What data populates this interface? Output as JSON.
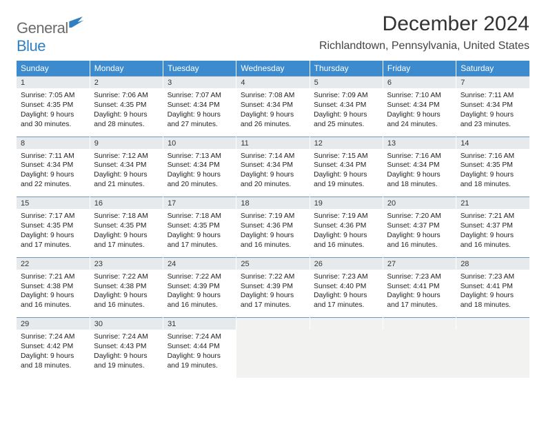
{
  "brand": {
    "part1": "General",
    "part2": "Blue"
  },
  "title": "December 2024",
  "location": "Richlandtown, Pennsylvania, United States",
  "colors": {
    "header_bg": "#3c8bcf",
    "header_text": "#ffffff",
    "daynum_bg": "#e7eaed",
    "rule": "#6d97be",
    "empty_bg": "#f2f2f0",
    "logo_gray": "#6b6b6b",
    "logo_blue": "#2f7fc2"
  },
  "weekdays": [
    "Sunday",
    "Monday",
    "Tuesday",
    "Wednesday",
    "Thursday",
    "Friday",
    "Saturday"
  ],
  "weeks": [
    [
      {
        "n": "1",
        "sr": "7:05 AM",
        "ss": "4:35 PM",
        "dl": "9 hours and 30 minutes."
      },
      {
        "n": "2",
        "sr": "7:06 AM",
        "ss": "4:35 PM",
        "dl": "9 hours and 28 minutes."
      },
      {
        "n": "3",
        "sr": "7:07 AM",
        "ss": "4:34 PM",
        "dl": "9 hours and 27 minutes."
      },
      {
        "n": "4",
        "sr": "7:08 AM",
        "ss": "4:34 PM",
        "dl": "9 hours and 26 minutes."
      },
      {
        "n": "5",
        "sr": "7:09 AM",
        "ss": "4:34 PM",
        "dl": "9 hours and 25 minutes."
      },
      {
        "n": "6",
        "sr": "7:10 AM",
        "ss": "4:34 PM",
        "dl": "9 hours and 24 minutes."
      },
      {
        "n": "7",
        "sr": "7:11 AM",
        "ss": "4:34 PM",
        "dl": "9 hours and 23 minutes."
      }
    ],
    [
      {
        "n": "8",
        "sr": "7:11 AM",
        "ss": "4:34 PM",
        "dl": "9 hours and 22 minutes."
      },
      {
        "n": "9",
        "sr": "7:12 AM",
        "ss": "4:34 PM",
        "dl": "9 hours and 21 minutes."
      },
      {
        "n": "10",
        "sr": "7:13 AM",
        "ss": "4:34 PM",
        "dl": "9 hours and 20 minutes."
      },
      {
        "n": "11",
        "sr": "7:14 AM",
        "ss": "4:34 PM",
        "dl": "9 hours and 20 minutes."
      },
      {
        "n": "12",
        "sr": "7:15 AM",
        "ss": "4:34 PM",
        "dl": "9 hours and 19 minutes."
      },
      {
        "n": "13",
        "sr": "7:16 AM",
        "ss": "4:34 PM",
        "dl": "9 hours and 18 minutes."
      },
      {
        "n": "14",
        "sr": "7:16 AM",
        "ss": "4:35 PM",
        "dl": "9 hours and 18 minutes."
      }
    ],
    [
      {
        "n": "15",
        "sr": "7:17 AM",
        "ss": "4:35 PM",
        "dl": "9 hours and 17 minutes."
      },
      {
        "n": "16",
        "sr": "7:18 AM",
        "ss": "4:35 PM",
        "dl": "9 hours and 17 minutes."
      },
      {
        "n": "17",
        "sr": "7:18 AM",
        "ss": "4:35 PM",
        "dl": "9 hours and 17 minutes."
      },
      {
        "n": "18",
        "sr": "7:19 AM",
        "ss": "4:36 PM",
        "dl": "9 hours and 16 minutes."
      },
      {
        "n": "19",
        "sr": "7:19 AM",
        "ss": "4:36 PM",
        "dl": "9 hours and 16 minutes."
      },
      {
        "n": "20",
        "sr": "7:20 AM",
        "ss": "4:37 PM",
        "dl": "9 hours and 16 minutes."
      },
      {
        "n": "21",
        "sr": "7:21 AM",
        "ss": "4:37 PM",
        "dl": "9 hours and 16 minutes."
      }
    ],
    [
      {
        "n": "22",
        "sr": "7:21 AM",
        "ss": "4:38 PM",
        "dl": "9 hours and 16 minutes."
      },
      {
        "n": "23",
        "sr": "7:22 AM",
        "ss": "4:38 PM",
        "dl": "9 hours and 16 minutes."
      },
      {
        "n": "24",
        "sr": "7:22 AM",
        "ss": "4:39 PM",
        "dl": "9 hours and 16 minutes."
      },
      {
        "n": "25",
        "sr": "7:22 AM",
        "ss": "4:39 PM",
        "dl": "9 hours and 17 minutes."
      },
      {
        "n": "26",
        "sr": "7:23 AM",
        "ss": "4:40 PM",
        "dl": "9 hours and 17 minutes."
      },
      {
        "n": "27",
        "sr": "7:23 AM",
        "ss": "4:41 PM",
        "dl": "9 hours and 17 minutes."
      },
      {
        "n": "28",
        "sr": "7:23 AM",
        "ss": "4:41 PM",
        "dl": "9 hours and 18 minutes."
      }
    ],
    [
      {
        "n": "29",
        "sr": "7:24 AM",
        "ss": "4:42 PM",
        "dl": "9 hours and 18 minutes."
      },
      {
        "n": "30",
        "sr": "7:24 AM",
        "ss": "4:43 PM",
        "dl": "9 hours and 19 minutes."
      },
      {
        "n": "31",
        "sr": "7:24 AM",
        "ss": "4:44 PM",
        "dl": "9 hours and 19 minutes."
      },
      null,
      null,
      null,
      null
    ]
  ],
  "labels": {
    "sunrise": "Sunrise:",
    "sunset": "Sunset:",
    "daylight": "Daylight:"
  }
}
